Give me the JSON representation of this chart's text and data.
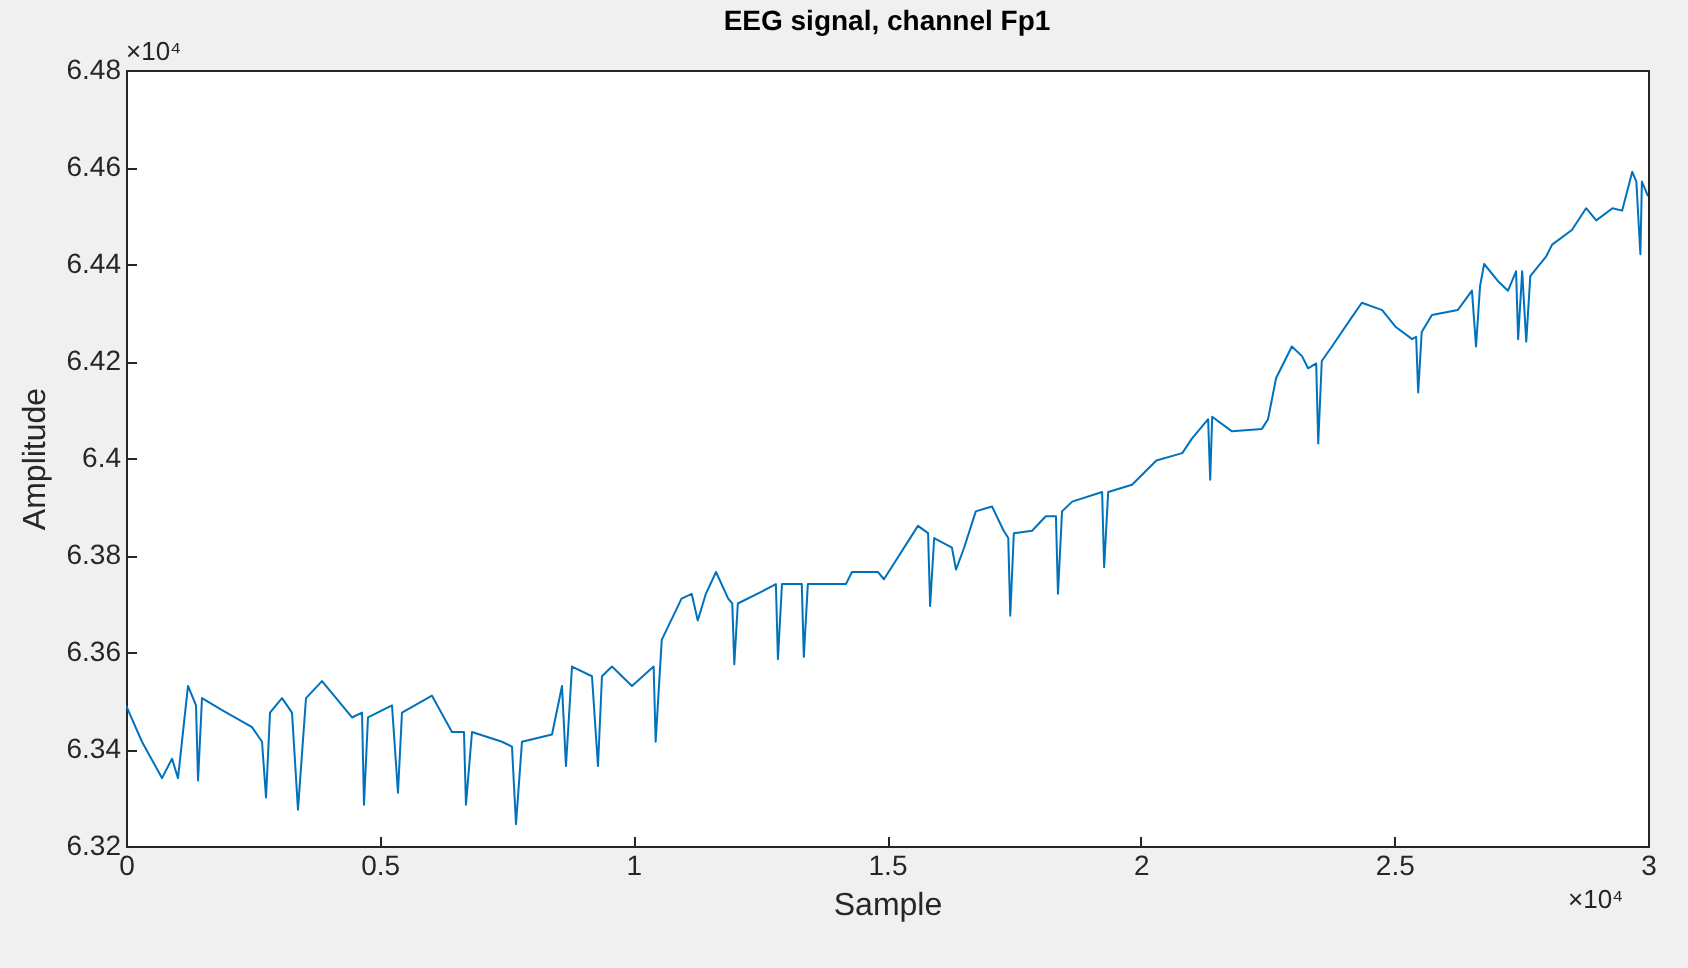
{
  "chart_data": {
    "type": "line",
    "title": "EEG signal, channel Fp1",
    "xlabel": "Sample",
    "ylabel": "Amplitude",
    "annotations": [
      "×10⁴",
      "×10⁴"
    ],
    "x": [
      0,
      0.0315,
      0.071,
      0.0907,
      0.1025,
      0.1222,
      0.138,
      0.142,
      0.1498,
      0.1893,
      0.2484,
      0.2681,
      0.276,
      0.2839,
      0.3075,
      0.3272,
      0.339,
      0.3548,
      0.3864,
      0.4455,
      0.4652,
      0.4691,
      0.477,
      0.5243,
      0.5361,
      0.544,
      0.6031,
      0.6425,
      0.6662,
      0.6701,
      0.682,
      0.7411,
      0.7608,
      0.7687,
      0.7805,
      0.8397,
      0.8594,
      0.8672,
      0.8791,
      0.9185,
      0.9303,
      0.9382,
      0.9579,
      0.9973,
      1.04,
      1.044,
      1.056,
      1.095,
      1.115,
      1.127,
      1.143,
      1.163,
      1.187,
      1.195,
      1.199,
      1.206,
      1.254,
      1.281,
      1.285,
      1.293,
      1.332,
      1.336,
      1.344,
      1.419,
      1.431,
      1.482,
      1.494,
      1.561,
      1.581,
      1.585,
      1.593,
      1.628,
      1.636,
      1.652,
      1.675,
      1.707,
      1.73,
      1.739,
      1.743,
      1.75,
      1.786,
      1.813,
      1.833,
      1.837,
      1.845,
      1.865,
      1.924,
      1.928,
      1.936,
      1.983,
      2.031,
      2.082,
      2.101,
      2.133,
      2.137,
      2.141,
      2.18,
      2.239,
      2.251,
      2.267,
      2.298,
      2.318,
      2.33,
      2.346,
      2.35,
      2.357,
      2.377,
      2.416,
      2.436,
      2.476,
      2.503,
      2.535,
      2.543,
      2.547,
      2.554,
      2.574,
      2.625,
      2.653,
      2.661,
      2.669,
      2.677,
      2.704,
      2.724,
      2.74,
      2.744,
      2.752,
      2.76,
      2.768,
      2.799,
      2.811,
      2.85,
      2.878,
      2.898,
      2.93,
      2.949,
      2.969,
      2.977,
      2.985,
      2.988,
      3
    ],
    "series": [
      {
        "color": "#0072bd",
        "values": [
          6.349,
          6.3415,
          6.334,
          6.338,
          6.334,
          6.353,
          6.349,
          6.3335,
          6.3505,
          6.348,
          6.3445,
          6.3415,
          6.33,
          6.3475,
          6.3505,
          6.3475,
          6.3275,
          6.3505,
          6.354,
          6.3465,
          6.3475,
          6.3285,
          6.3465,
          6.349,
          6.331,
          6.3475,
          6.351,
          6.3435,
          6.3435,
          6.3285,
          6.3435,
          6.3415,
          6.3405,
          6.3245,
          6.3415,
          6.343,
          6.353,
          6.3365,
          6.357,
          6.355,
          6.3365,
          6.355,
          6.357,
          6.353,
          6.357,
          6.3415,
          6.3625,
          6.371,
          6.372,
          6.3665,
          6.372,
          6.3765,
          6.371,
          6.37,
          6.3575,
          6.37,
          6.3725,
          6.374,
          6.3585,
          6.374,
          6.374,
          6.359,
          6.374,
          6.374,
          6.3765,
          6.3765,
          6.375,
          6.386,
          6.3845,
          6.3695,
          6.3835,
          6.3815,
          6.377,
          6.3815,
          6.389,
          6.39,
          6.385,
          6.3835,
          6.3675,
          6.3845,
          6.385,
          6.388,
          6.388,
          6.372,
          6.389,
          6.391,
          6.393,
          6.3775,
          6.393,
          6.3945,
          6.3995,
          6.401,
          6.404,
          6.408,
          6.3955,
          6.4085,
          6.4055,
          6.406,
          6.408,
          6.4165,
          6.423,
          6.421,
          6.4185,
          6.4195,
          6.403,
          6.42,
          6.423,
          6.429,
          6.432,
          6.4305,
          6.427,
          6.4245,
          6.425,
          6.4135,
          6.426,
          6.4295,
          6.4305,
          6.4345,
          6.423,
          6.4355,
          6.44,
          6.4365,
          6.4345,
          6.4385,
          6.4245,
          6.4385,
          6.424,
          6.4375,
          6.4415,
          6.444,
          6.447,
          6.4515,
          6.449,
          6.4515,
          6.451,
          6.459,
          6.457,
          6.442,
          6.457,
          6.454
        ]
      }
    ],
    "xlim": [
      0,
      3
    ],
    "ylim": [
      6.32,
      6.48
    ],
    "xticks": [
      0,
      0.5,
      1,
      1.5,
      2,
      2.5,
      3
    ],
    "yticks": [
      6.32,
      6.34,
      6.36,
      6.38,
      6.4,
      6.42,
      6.44,
      6.46,
      6.48
    ],
    "grid": false,
    "marker": "none",
    "line_style": "solid"
  }
}
